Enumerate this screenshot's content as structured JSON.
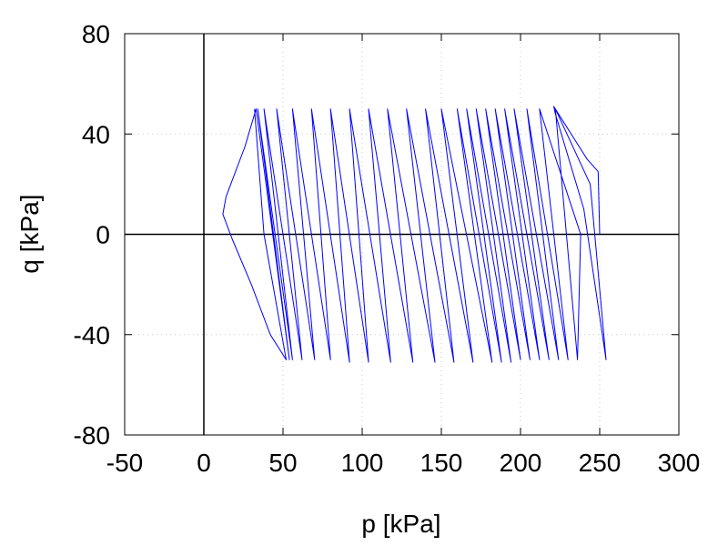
{
  "chart_data": {
    "type": "line",
    "title": "",
    "xlabel": "p [kPa]",
    "ylabel": "q [kPa]",
    "xlim": [
      -50,
      300
    ],
    "ylim": [
      -80,
      80
    ],
    "xticks": [
      -50,
      0,
      50,
      100,
      150,
      200,
      250,
      300
    ],
    "yticks": [
      -80,
      -40,
      0,
      40,
      80
    ],
    "xtick_labels": [
      "-50",
      "0",
      "50",
      "100",
      "150",
      "200",
      "250",
      "300"
    ],
    "ytick_labels": [
      "-80",
      "-40",
      "0",
      "40",
      "80"
    ],
    "grid": true,
    "zero_lines": true,
    "legend": "none",
    "colors": {
      "series": "#0000ff",
      "axis": "#000000",
      "grid": "#c8c8c8"
    },
    "series": [
      {
        "color": "#0000ff",
        "description": "cyclic stress path (p, q); cycles drift from p≈250 toward lower p, bounded by q≈+50 / -51",
        "points": [
          [
            250,
            0
          ],
          [
            249,
            25
          ],
          [
            242,
            30
          ],
          [
            226,
            46
          ],
          [
            221,
            51
          ],
          [
            222,
            48
          ],
          [
            240,
            10
          ],
          [
            254,
            -50
          ],
          [
            244,
            20
          ],
          [
            222,
            50
          ],
          [
            236,
            -50
          ],
          [
            238,
            0
          ],
          [
            212,
            50
          ],
          [
            230,
            -50
          ],
          [
            204,
            50
          ],
          [
            224,
            -50
          ],
          [
            196,
            50
          ],
          [
            218,
            -50
          ],
          [
            190,
            50
          ],
          [
            212,
            -50
          ],
          [
            184,
            50
          ],
          [
            206,
            -50
          ],
          [
            178,
            50
          ],
          [
            200,
            -50
          ],
          [
            172,
            50
          ],
          [
            194,
            -51
          ],
          [
            166,
            50
          ],
          [
            188,
            -51
          ],
          [
            160,
            50
          ],
          [
            182,
            -51
          ],
          [
            150,
            50
          ],
          [
            170,
            -51
          ],
          [
            140,
            50
          ],
          [
            158,
            -51
          ],
          [
            128,
            50
          ],
          [
            146,
            -51
          ],
          [
            116,
            50
          ],
          [
            132,
            -51
          ],
          [
            104,
            50
          ],
          [
            118,
            -51
          ],
          [
            92,
            50
          ],
          [
            104,
            -51
          ],
          [
            80,
            50
          ],
          [
            92,
            -51
          ],
          [
            68,
            50
          ],
          [
            80,
            -50
          ],
          [
            56,
            50
          ],
          [
            70,
            -50
          ],
          [
            46,
            50
          ],
          [
            62,
            -50
          ],
          [
            38,
            50
          ],
          [
            56,
            -50
          ],
          [
            34,
            50
          ],
          [
            54,
            -50
          ],
          [
            33,
            50
          ],
          [
            26,
            35
          ],
          [
            14,
            15
          ],
          [
            12,
            8
          ],
          [
            18,
            -2
          ],
          [
            30,
            -20
          ],
          [
            42,
            -40
          ],
          [
            52,
            -50
          ],
          [
            38,
            0
          ],
          [
            32,
            50
          ]
        ]
      }
    ]
  }
}
